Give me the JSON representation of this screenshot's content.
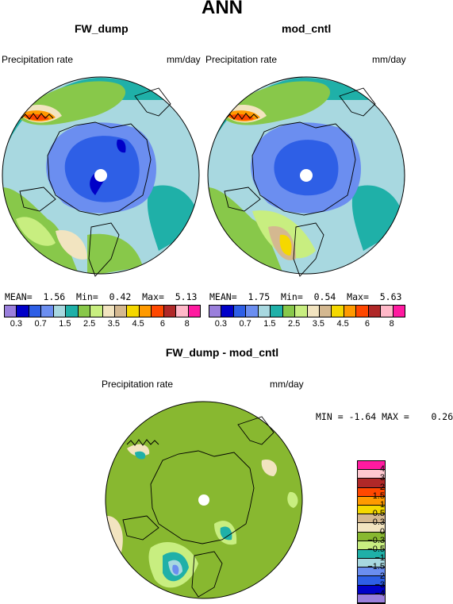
{
  "title": "ANN",
  "panels": [
    {
      "title": "FW_dump",
      "variable": "Precipitation rate",
      "units": "mm/day",
      "mean": "1.56",
      "min": "0.42",
      "max": "5.13"
    },
    {
      "title": "mod_cntl",
      "variable": "Precipitation rate",
      "units": "mm/day",
      "mean": "1.75",
      "min": "0.54",
      "max": "5.63"
    }
  ],
  "stat_labels": {
    "mean": "MEAN=",
    "min": "Min=",
    "max": "Max="
  },
  "diff": {
    "title": "FW_dump - mod_cntl",
    "variable": "Precipitation rate",
    "units": "mm/day",
    "min": "-1.64",
    "max": "0.26",
    "min_label": "MIN =",
    "max_label": "MAX ="
  },
  "levels_labels": [
    "0.3",
    "0.7",
    "1.5",
    "2.5",
    "3.5",
    "4.5",
    "6",
    "8"
  ],
  "levels_colors": [
    "#9a7fdc",
    "#0000c8",
    "#2e5fe6",
    "#6b8ef0",
    "#a8d8e0",
    "#1fb0a8",
    "#88c84a",
    "#c8ee80",
    "#f2e4c0",
    "#d4b890",
    "#f5d800",
    "#ff9a00",
    "#ff4800",
    "#b02828",
    "#ffb8c8",
    "#ff1aa0"
  ],
  "diff_labels": [
    "4",
    "3",
    "2",
    "1.5",
    "1",
    "0.5",
    "0.3",
    "0",
    "−0.3",
    "−0.5",
    "−1",
    "−1.5",
    "−2",
    "−3",
    "−4"
  ],
  "diff_colors": [
    "#ff1aa0",
    "#ffc8d0",
    "#b02828",
    "#ff4800",
    "#ff9a00",
    "#f5d800",
    "#d4b890",
    "#f2e4c0",
    "#88b830",
    "#c8ee80",
    "#1fb0a8",
    "#a8d8e0",
    "#6b8ef0",
    "#2e5fe6",
    "#0000c8",
    "#9a7fdc"
  ]
}
